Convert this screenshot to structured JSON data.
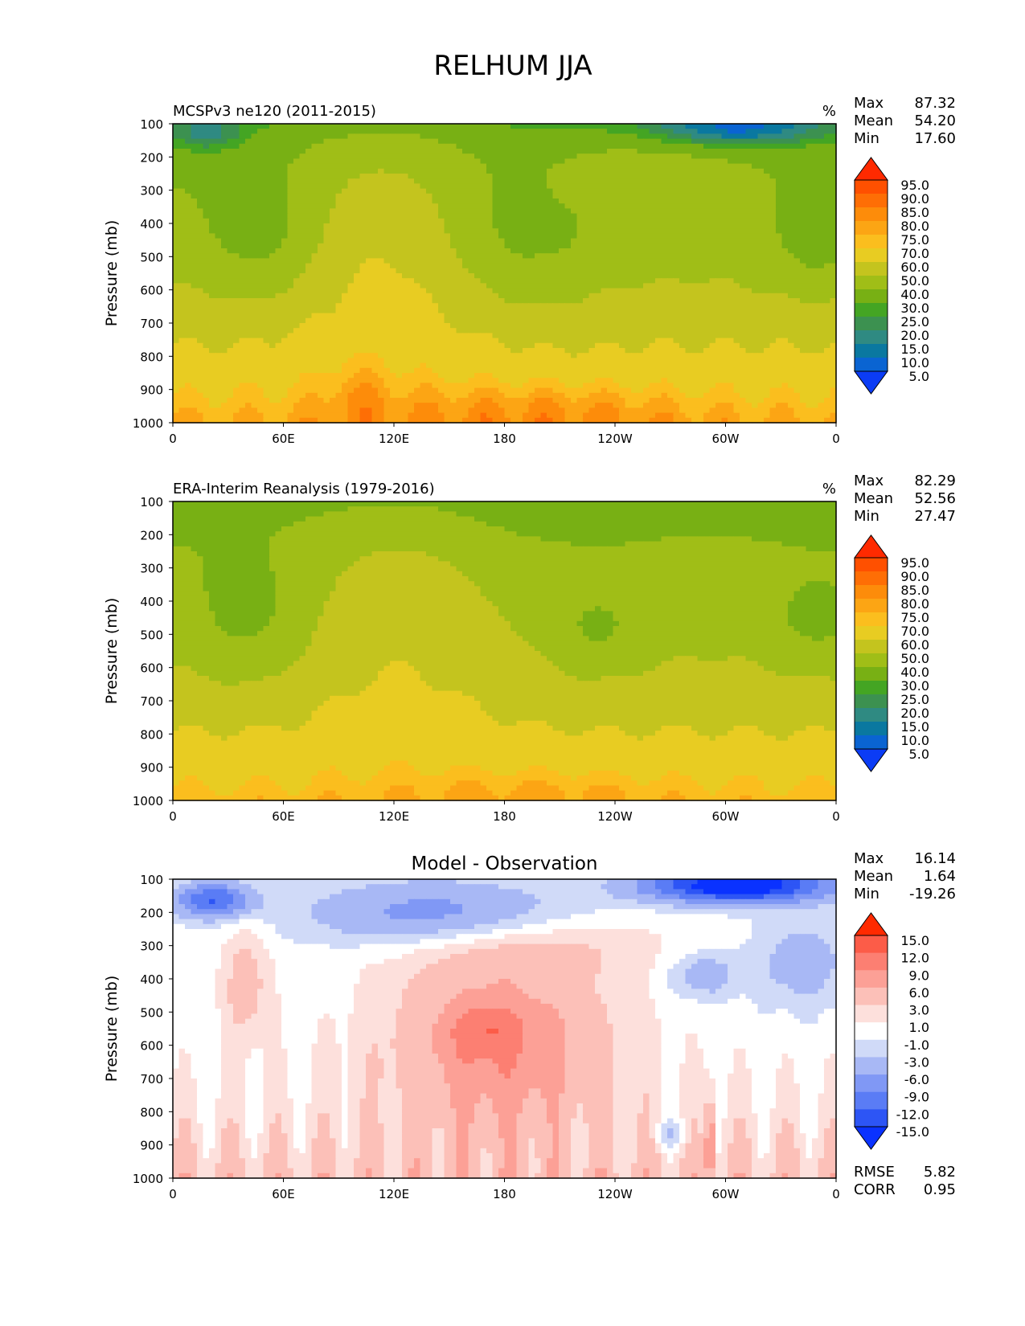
{
  "figure": {
    "title": "RELHUM JJA"
  },
  "colors": {
    "field_levels": [
      5,
      10,
      15,
      20,
      25,
      30,
      40,
      50,
      60,
      70,
      75,
      80,
      85,
      90,
      95
    ],
    "field_colors": [
      "#0b3cf5",
      "#0a64d2",
      "#0a78a0",
      "#2f8a82",
      "#3c9150",
      "#44a523",
      "#78b014",
      "#a0be17",
      "#c4c41e",
      "#e8cc22",
      "#fbbe1e",
      "#fca514",
      "#fd8c0a",
      "#fe6e05",
      "#ff5000",
      "#ff2a00"
    ],
    "diff_levels": [
      -15,
      -12,
      -9,
      -6,
      -3,
      -1,
      1,
      3,
      6,
      9,
      12,
      15
    ],
    "diff_colors": [
      "#0a32ff",
      "#2d55f5",
      "#5a7cf5",
      "#8098f5",
      "#a8b8f5",
      "#d0daf8",
      "#ffffff",
      "#fde0dc",
      "#fcc0b8",
      "#fca096",
      "#fc7f72",
      "#fc5c48",
      "#ff2a00"
    ]
  },
  "chart_data": [
    {
      "type": "heatmap",
      "title": "MCSPv3 ne120 (2011-2015)",
      "units": "%",
      "ylabel": "Pressure (mb)",
      "x_ticks": [
        "0",
        "60E",
        "120E",
        "180",
        "120W",
        "60W",
        "0"
      ],
      "y_ticks": [
        "100",
        "200",
        "300",
        "400",
        "500",
        "600",
        "700",
        "800",
        "900",
        "1000"
      ],
      "xlim": [
        0,
        360
      ],
      "ylim": [
        100,
        1000
      ],
      "colorbar_labels": [
        "95.0",
        "90.0",
        "85.0",
        "80.0",
        "75.0",
        "70.0",
        "60.0",
        "50.0",
        "40.0",
        "30.0",
        "25.0",
        "20.0",
        "15.0",
        "10.0",
        "5.0"
      ],
      "stats": [
        {
          "label": "Max",
          "value": "87.32"
        },
        {
          "label": "Mean",
          "value": "54.20"
        },
        {
          "label": "Min",
          "value": "17.60"
        }
      ]
    },
    {
      "type": "heatmap",
      "title": "ERA-Interim Reanalysis (1979-2016)",
      "units": "%",
      "ylabel": "Pressure (mb)",
      "x_ticks": [
        "0",
        "60E",
        "120E",
        "180",
        "120W",
        "60W",
        "0"
      ],
      "y_ticks": [
        "100",
        "200",
        "300",
        "400",
        "500",
        "600",
        "700",
        "800",
        "900",
        "1000"
      ],
      "xlim": [
        0,
        360
      ],
      "ylim": [
        100,
        1000
      ],
      "colorbar_labels": [
        "95.0",
        "90.0",
        "85.0",
        "80.0",
        "75.0",
        "70.0",
        "60.0",
        "50.0",
        "40.0",
        "30.0",
        "25.0",
        "20.0",
        "15.0",
        "10.0",
        "5.0"
      ],
      "stats": [
        {
          "label": "Max",
          "value": "82.29"
        },
        {
          "label": "Mean",
          "value": "52.56"
        },
        {
          "label": "Min",
          "value": "27.47"
        }
      ]
    },
    {
      "type": "heatmap",
      "title": "Model - Observation",
      "ylabel": "Pressure (mb)",
      "x_ticks": [
        "0",
        "60E",
        "120E",
        "180",
        "120W",
        "60W",
        "0"
      ],
      "y_ticks": [
        "100",
        "200",
        "300",
        "400",
        "500",
        "600",
        "700",
        "800",
        "900",
        "1000"
      ],
      "xlim": [
        0,
        360
      ],
      "ylim": [
        100,
        1000
      ],
      "colorbar_labels": [
        "15.0",
        "12.0",
        "9.0",
        "6.0",
        "3.0",
        "1.0",
        "-1.0",
        "-3.0",
        "-6.0",
        "-9.0",
        "-12.0",
        "-15.0"
      ],
      "stats": [
        {
          "label": "Max",
          "value": "16.14"
        },
        {
          "label": "Mean",
          "value": "1.64"
        },
        {
          "label": "Min",
          "value": "-19.26"
        }
      ],
      "metrics": [
        {
          "label": "RMSE",
          "value": "5.82"
        },
        {
          "label": "CORR",
          "value": "0.95"
        }
      ]
    }
  ]
}
